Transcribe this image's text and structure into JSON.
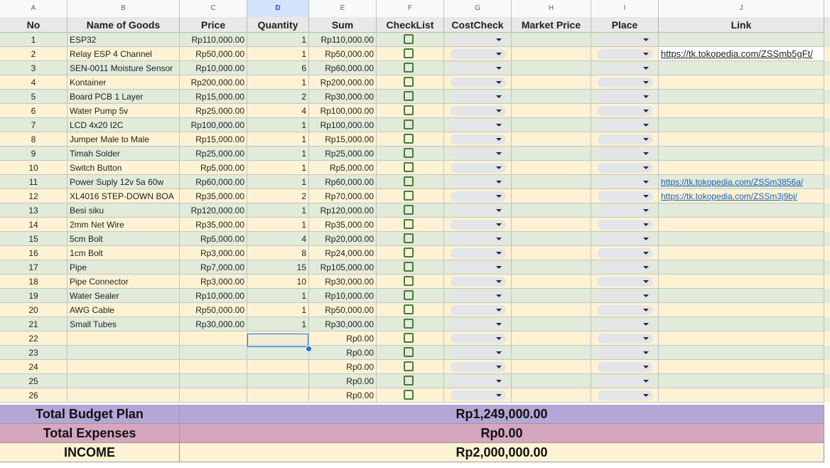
{
  "column_letters": [
    "A",
    "B",
    "C",
    "D",
    "E",
    "F",
    "G",
    "H",
    "I",
    "J"
  ],
  "selected_column": "D",
  "headers": {
    "no": "No",
    "name": "Name of Goods",
    "price": "Price",
    "quantity": "Quantity",
    "sum": "Sum",
    "checklist": "CheckList",
    "costcheck": "CostCheck",
    "market_price": "Market Price",
    "place": "Place",
    "link": "Link"
  },
  "rows": [
    {
      "no": "1",
      "name": "ESP32",
      "price": "Rp110,000.00",
      "qty": "1",
      "sum": "Rp110,000.00",
      "link": ""
    },
    {
      "no": "2",
      "name": "Relay ESP 4 Channel",
      "price": "Rp50,000.00",
      "qty": "1",
      "sum": "Rp50,000.00",
      "link": "https://tk.tokopedia.com/ZSSmb5gFt/"
    },
    {
      "no": "3",
      "name": "SEN-0011 Moisture Sensor",
      "price": "Rp10,000.00",
      "qty": "6",
      "sum": "Rp60,000.00",
      "link": ""
    },
    {
      "no": "4",
      "name": "Kontainer",
      "price": "Rp200,000.00",
      "qty": "1",
      "sum": "Rp200,000.00",
      "link": ""
    },
    {
      "no": "5",
      "name": "Board PCB 1 Layer",
      "price": "Rp15,000.00",
      "qty": "2",
      "sum": "Rp30,000.00",
      "link": ""
    },
    {
      "no": "6",
      "name": "Water Pump 5v",
      "price": "Rp25,000.00",
      "qty": "4",
      "sum": "Rp100,000.00",
      "link": ""
    },
    {
      "no": "7",
      "name": "LCD 4x20 I2C",
      "price": "Rp100,000.00",
      "qty": "1",
      "sum": "Rp100,000.00",
      "link": ""
    },
    {
      "no": "8",
      "name": "Jumper Male to Male",
      "price": "Rp15,000.00",
      "qty": "1",
      "sum": "Rp15,000.00",
      "link": ""
    },
    {
      "no": "9",
      "name": "Timah Solder",
      "price": "Rp25,000.00",
      "qty": "1",
      "sum": "Rp25,000.00",
      "link": ""
    },
    {
      "no": "10",
      "name": "Switch Button",
      "price": "Rp5,000.00",
      "qty": "1",
      "sum": "Rp5,000.00",
      "link": ""
    },
    {
      "no": "11",
      "name": "Power Suply 12v 5a 60w",
      "price": "Rp60,000.00",
      "qty": "1",
      "sum": "Rp60,000.00",
      "link": "https://tk.tokopedia.com/ZSSm3856a/"
    },
    {
      "no": "12",
      "name": "XL4016 STEP-DOWN BOA",
      "price": "Rp35,000.00",
      "qty": "2",
      "sum": "Rp70,000.00",
      "link": "https://tk.tokopedia.com/ZSSm3j9bj/"
    },
    {
      "no": "13",
      "name": "Besi siku",
      "price": "Rp120,000.00",
      "qty": "1",
      "sum": "Rp120,000.00",
      "link": ""
    },
    {
      "no": "14",
      "name": "2mm Net Wire",
      "price": "Rp35,000.00",
      "qty": "1",
      "sum": "Rp35,000.00",
      "link": ""
    },
    {
      "no": "15",
      "name": "5cm Bolt",
      "price": "Rp5,000.00",
      "qty": "4",
      "sum": "Rp20,000.00",
      "link": ""
    },
    {
      "no": "16",
      "name": " 1cm Bolt",
      "price": "Rp3,000.00",
      "qty": "8",
      "sum": "Rp24,000.00",
      "link": ""
    },
    {
      "no": "17",
      "name": "Pipe",
      "price": "Rp7,000.00",
      "qty": "15",
      "sum": "Rp105,000.00",
      "link": ""
    },
    {
      "no": "18",
      "name": "Pipe Connector",
      "price": "Rp3,000.00",
      "qty": "10",
      "sum": "Rp30,000.00",
      "link": ""
    },
    {
      "no": "19",
      "name": "Water Sealer",
      "price": "Rp10,000.00",
      "qty": "1",
      "sum": "Rp10,000.00",
      "link": ""
    },
    {
      "no": "20",
      "name": "AWG Cable",
      "price": "Rp50,000.00",
      "qty": "1",
      "sum": "Rp50,000.00",
      "link": ""
    },
    {
      "no": "21",
      "name": "Small Tubes",
      "price": "Rp30,000.00",
      "qty": "1",
      "sum": "Rp30,000.00",
      "link": ""
    },
    {
      "no": "22",
      "name": "",
      "price": "",
      "qty": "",
      "sum": "Rp0.00",
      "link": ""
    },
    {
      "no": "23",
      "name": "",
      "price": "",
      "qty": "",
      "sum": "Rp0.00",
      "link": ""
    },
    {
      "no": "24",
      "name": "",
      "price": "",
      "qty": "",
      "sum": "Rp0.00",
      "link": ""
    },
    {
      "no": "25",
      "name": "",
      "price": "",
      "qty": "",
      "sum": "Rp0.00",
      "link": ""
    },
    {
      "no": "26",
      "name": "",
      "price": "",
      "qty": "",
      "sum": "Rp0.00",
      "link": ""
    }
  ],
  "summary": {
    "budget_label": "Total Budget Plan",
    "budget_value": "Rp1,249,000.00",
    "expenses_label": "Total Expenses",
    "expenses_value": "Rp0.00",
    "income_label": "INCOME",
    "income_value": "Rp2,000,000.00"
  },
  "colors": {
    "row_green": "#e2ead9",
    "row_yellow": "#fdf3d4",
    "budget": "#b4a7d6",
    "expenses": "#d5a6bd",
    "income": "#fdf3d4",
    "selection": "#1a73e8"
  }
}
